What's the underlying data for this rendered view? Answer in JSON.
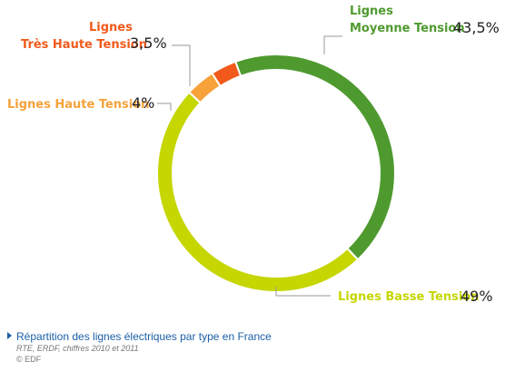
{
  "chart_data": {
    "type": "pie",
    "style": "donut",
    "title": "Répartition des lignes électriques par type en France",
    "categories": [
      "Lignes Moyenne Tension",
      "Lignes Basse Tension",
      "Lignes Haute Tension",
      "Lignes Très Haute Tension"
    ],
    "values": [
      43.5,
      49,
      4,
      3.5
    ],
    "value_labels": [
      "43,5%",
      "49%",
      "4%",
      "3,5%"
    ],
    "colors": [
      "#4f9a2f",
      "#c5d600",
      "#f7a23a",
      "#f15a1b"
    ]
  },
  "labels": {
    "mt_line1": "Lignes",
    "mt_line2": "Moyenne Tension",
    "mt_pct": "43,5%",
    "bt_line1": "Lignes Basse Tension",
    "bt_pct": "49%",
    "ht_line1": "Lignes Haute Tension",
    "ht_pct": "4%",
    "tht_line1": "Lignes",
    "tht_line2": "Très Haute Tension",
    "tht_pct": "3,5%"
  },
  "footer": {
    "caption": "Répartition des lignes électriques par type en France",
    "source": "RTE, ERDF, chiffres 2010 et 2011",
    "copyright": "© EDF"
  }
}
